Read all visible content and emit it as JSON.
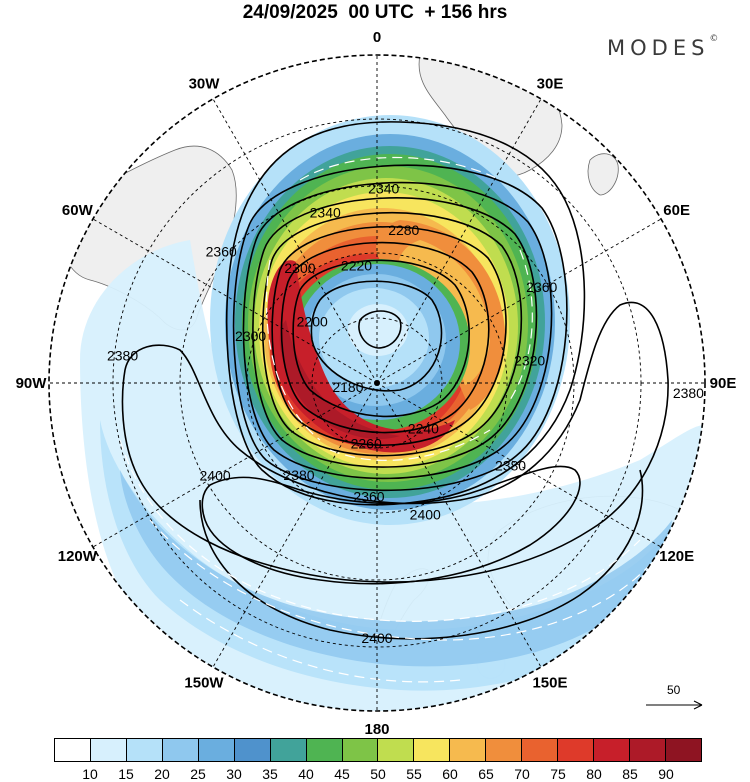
{
  "title": "24/09/2025  00 UTC  + 156 hrs",
  "brand": {
    "name": "MODES",
    "mark": "©"
  },
  "map": {
    "projection": "polar-stereographic-south",
    "lon_labels": [
      {
        "name": "0",
        "angle": 0
      },
      {
        "name": "30E",
        "angle": 30
      },
      {
        "name": "60E",
        "angle": 60
      },
      {
        "name": "90E",
        "angle": 90
      },
      {
        "name": "120E",
        "angle": 120
      },
      {
        "name": "150E",
        "angle": 150
      },
      {
        "name": "180",
        "angle": 180
      },
      {
        "name": "150W",
        "angle": 210
      },
      {
        "name": "120W",
        "angle": 240
      },
      {
        "name": "90W",
        "angle": 270
      },
      {
        "name": "60W",
        "angle": 300
      },
      {
        "name": "30W",
        "angle": 330
      }
    ],
    "contour_labels": [
      {
        "text": "2340",
        "angle": 2,
        "r": 0.59
      },
      {
        "text": "2340",
        "angle": 343,
        "r": 0.54
      },
      {
        "text": "2280",
        "angle": 10,
        "r": 0.47
      },
      {
        "text": "2220",
        "angle": 350,
        "r": 0.36
      },
      {
        "text": "2300",
        "angle": 326,
        "r": 0.42
      },
      {
        "text": "2200",
        "angle": 313,
        "r": 0.27
      },
      {
        "text": "2360",
        "angle": 310,
        "r": 0.62
      },
      {
        "text": "2360",
        "angle": 60,
        "r": 0.58
      },
      {
        "text": "2320",
        "angle": 82,
        "r": 0.47
      },
      {
        "text": "2300",
        "angle": 290,
        "r": 0.41
      },
      {
        "text": "2180",
        "angle": 260,
        "r": 0.09
      },
      {
        "text": "2380",
        "angle": 276,
        "r": 0.78
      },
      {
        "text": "2380",
        "angle": 92,
        "r": 0.95
      },
      {
        "text": "2380",
        "angle": 122,
        "r": 0.48
      },
      {
        "text": "2240",
        "angle": 135,
        "r": 0.2
      },
      {
        "text": "2260",
        "angle": 190,
        "r": 0.19
      },
      {
        "text": "2360",
        "angle": 184,
        "r": 0.35
      },
      {
        "text": "2380",
        "angle": 220,
        "r": 0.37
      },
      {
        "text": "2400",
        "angle": 160,
        "r": 0.43
      },
      {
        "text": "2400",
        "angle": 240,
        "r": 0.57
      },
      {
        "text": "2400",
        "angle": 180,
        "r": 0.78
      }
    ],
    "reference_vector": {
      "value": "50"
    }
  },
  "colorbar": {
    "colors": [
      "#ffffff",
      "#d7f0fd",
      "#b5e1f9",
      "#8fc8ee",
      "#6aaedf",
      "#4f92cc",
      "#41a39a",
      "#4fb452",
      "#7ec447",
      "#c0dd4f",
      "#f7e55e",
      "#f6ba4e",
      "#f08e3c",
      "#e9622f",
      "#de3a2a",
      "#c71f2a",
      "#ad1a28",
      "#8e1422"
    ],
    "ticks": [
      "10",
      "15",
      "20",
      "25",
      "30",
      "35",
      "40",
      "45",
      "50",
      "55",
      "60",
      "65",
      "70",
      "75",
      "80",
      "85",
      "90"
    ]
  },
  "colors": {
    "land": "#efefef",
    "coast": "#6b6b6b",
    "contour": "#000000",
    "vector": "#ffffff"
  }
}
